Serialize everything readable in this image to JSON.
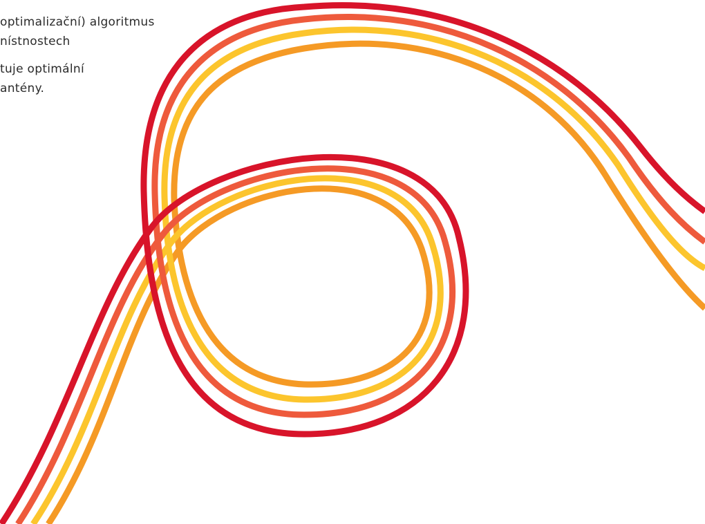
{
  "text": {
    "paragraph1": {
      "line1": "optimalizační) algoritmus",
      "line2": "nístnostech"
    },
    "paragraph2": {
      "line1": "tuje optimální",
      "line2": "antény."
    }
  },
  "decoration": {
    "name": "ribbon-swirl",
    "colors": {
      "outer": "#d8142a",
      "second": "#ee5a3c",
      "third": "#fcc52d",
      "inner": "#f59a25"
    }
  }
}
